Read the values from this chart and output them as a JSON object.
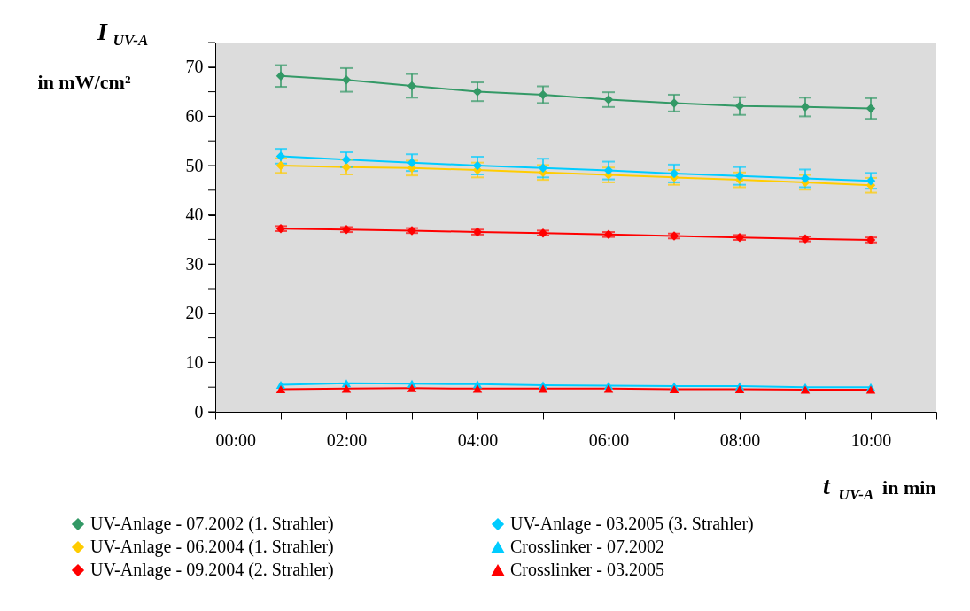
{
  "chart_data": {
    "type": "line",
    "ylabel": "I$_{UV-A}$ in mW/cm²",
    "xlabel": "t$_{UV-A}$ in min",
    "x": [
      1,
      2,
      3,
      4,
      5,
      6,
      7,
      8,
      9,
      10
    ],
    "xlim": [
      0,
      11
    ],
    "xticks": [
      {
        "value": 0,
        "label": "00:00"
      },
      {
        "value": 1,
        "label": null
      },
      {
        "value": 2,
        "label": "02:00"
      },
      {
        "value": 3,
        "label": null
      },
      {
        "value": 4,
        "label": "04:00"
      },
      {
        "value": 5,
        "label": null
      },
      {
        "value": 6,
        "label": "06:00"
      },
      {
        "value": 7,
        "label": null
      },
      {
        "value": 8,
        "label": "08:00"
      },
      {
        "value": 9,
        "label": null
      },
      {
        "value": 10,
        "label": "10:00"
      },
      {
        "value": 11,
        "label": null
      }
    ],
    "ylim": [
      0,
      75
    ],
    "yticks": [
      0,
      {
        "value": 5,
        "label": null
      },
      10,
      {
        "value": 15,
        "label": null
      },
      20,
      {
        "value": 25,
        "label": null
      },
      30,
      {
        "value": 35,
        "label": null
      },
      40,
      {
        "value": 45,
        "label": null
      },
      50,
      {
        "value": 55,
        "label": null
      },
      60,
      {
        "value": 65,
        "label": null
      },
      70,
      {
        "value": 75,
        "label": null
      }
    ],
    "grid": false,
    "legend": "bottom",
    "line_style": "solid",
    "series": [
      {
        "name": "UV-Anlage - 07.2002 (1. Strahler)",
        "color": "#339966",
        "marker": "diamond",
        "values": [
          68.2,
          67.4,
          66.2,
          65.0,
          64.4,
          63.4,
          62.7,
          62.1,
          61.9,
          61.6
        ],
        "errors": [
          2.2,
          2.4,
          2.4,
          1.9,
          1.7,
          1.5,
          1.7,
          1.8,
          1.9,
          2.1
        ]
      },
      {
        "name": "UV-Anlage - 06.2004 (1. Strahler)",
        "color": "#ffcc00",
        "marker": "diamond",
        "values": [
          50.0,
          49.7,
          49.5,
          49.1,
          48.6,
          48.1,
          47.6,
          47.1,
          46.6,
          46.0
        ],
        "errors": [
          1.5,
          1.5,
          1.5,
          1.5,
          1.5,
          1.5,
          1.5,
          1.5,
          1.5,
          1.5
        ]
      },
      {
        "name": "UV-Anlage - 09.2004 (2. Strahler)",
        "color": "#ff0000",
        "marker": "diamond",
        "values": [
          37.2,
          37.0,
          36.8,
          36.5,
          36.3,
          36.0,
          35.7,
          35.4,
          35.1,
          34.9
        ],
        "errors": [
          0.5,
          0.5,
          0.5,
          0.5,
          0.5,
          0.5,
          0.5,
          0.5,
          0.5,
          0.5
        ]
      },
      {
        "name": "UV-Anlage - 03.2005 (3. Strahler)",
        "color": "#00ccff",
        "marker": "diamond",
        "values": [
          51.9,
          51.2,
          50.6,
          50.0,
          49.5,
          49.0,
          48.4,
          47.9,
          47.4,
          46.9
        ],
        "errors": [
          1.5,
          1.5,
          1.7,
          1.8,
          1.9,
          1.8,
          1.8,
          1.8,
          1.8,
          1.6
        ]
      },
      {
        "name": "Crosslinker - 07.2002",
        "color": "#00ccff",
        "marker": "triangle",
        "values": [
          5.5,
          5.8,
          5.7,
          5.6,
          5.4,
          5.3,
          5.2,
          5.2,
          5.0,
          5.0
        ]
      },
      {
        "name": "Crosslinker - 03.2005",
        "color": "#ff0000",
        "marker": "triangle",
        "values": [
          4.6,
          4.7,
          4.8,
          4.7,
          4.7,
          4.7,
          4.6,
          4.6,
          4.5,
          4.5
        ]
      }
    ]
  }
}
